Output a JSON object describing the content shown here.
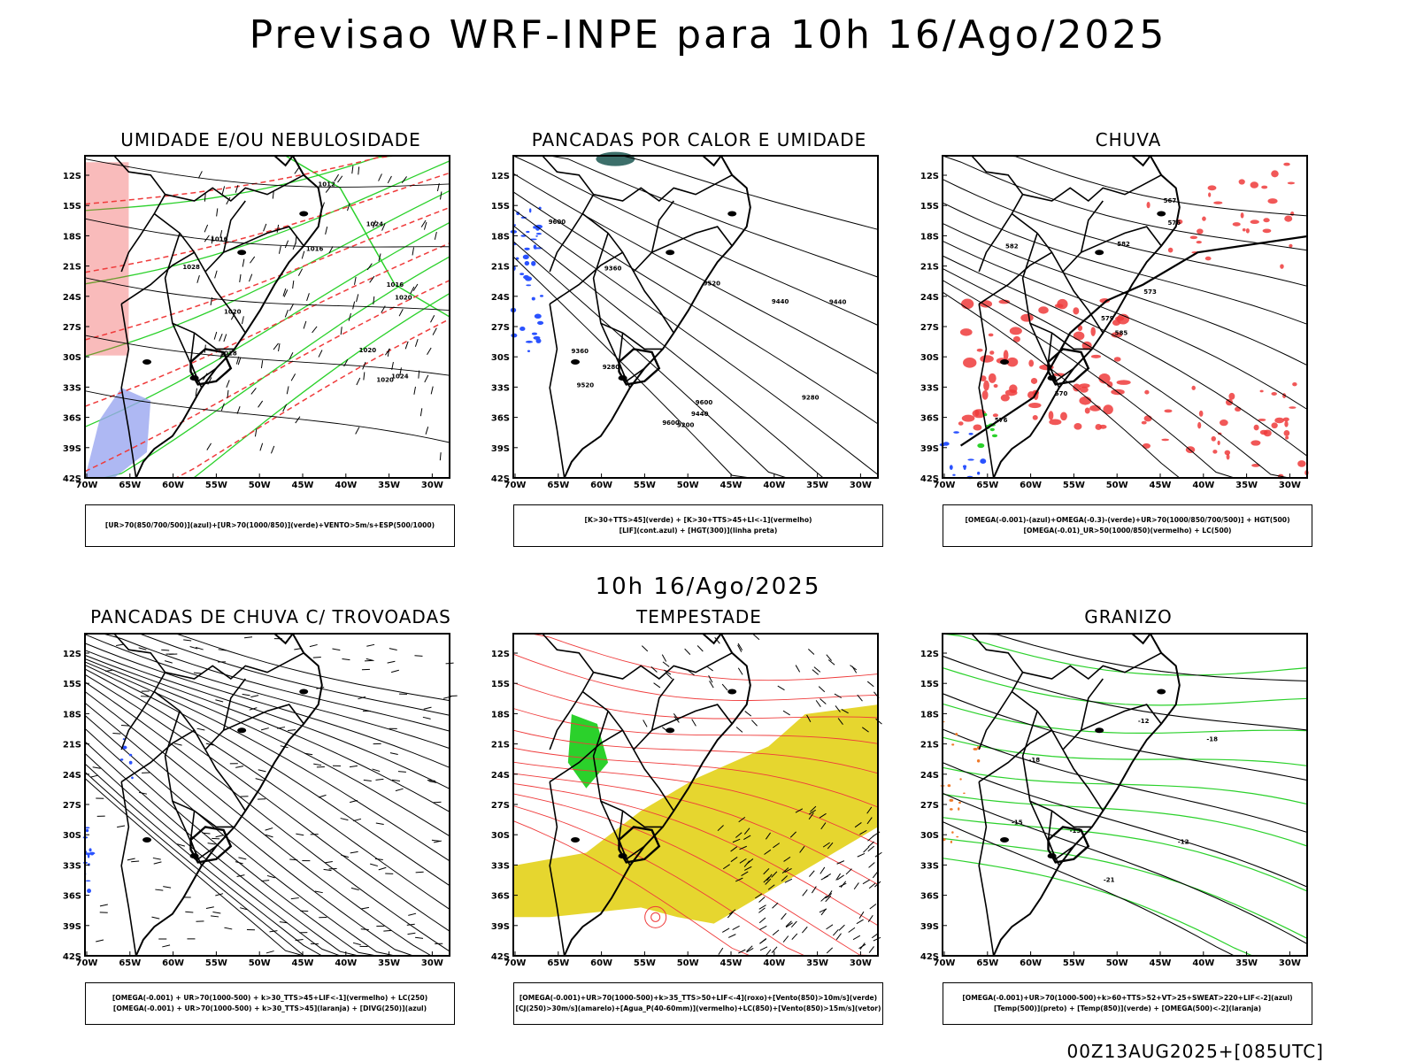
{
  "header": {
    "title": "Previsao WRF-INPE  para 10h 16/Ago/2025"
  },
  "mid_time": "10h 16/Ago/2025",
  "footer": {
    "run_stamp": "00Z13AUG2025+[085UTC]"
  },
  "axes": {
    "lat_labels": [
      "12S",
      "15S",
      "18S",
      "21S",
      "24S",
      "27S",
      "30S",
      "33S",
      "36S",
      "39S",
      "42S"
    ],
    "lon_labels": [
      "70W",
      "65W",
      "60W",
      "55W",
      "50W",
      "45W",
      "40W",
      "35W",
      "30W"
    ]
  },
  "panels": [
    {
      "id": "umidade",
      "title": "UMIDADE E/OU NEBULOSIDADE",
      "caption": [
        "[UR>70(850/700/500)](azul)+[UR>70(1000/850)](verde)+VENTO>5m/s+ESP(500/1000)"
      ],
      "contour_labels": [
        "1016",
        "1016",
        "1016",
        "1020",
        "1020",
        "1024",
        "1028",
        "1012",
        "1020",
        "1024",
        "1028",
        "1020"
      ]
    },
    {
      "id": "pancadas-calor",
      "title": "PANCADAS POR CALOR E UMIDADE",
      "caption": [
        "[K>30+TTS>45](verde) + [K>30+TTS>45+LI<-1](vermelho)",
        "[LIF](cont.azul) + [HGT(300)](linha preta)"
      ],
      "contour_labels": [
        "9600",
        "9600",
        "9520",
        "9600",
        "9440",
        "9520",
        "9440",
        "9360",
        "9440",
        "9360",
        "9280",
        "9280",
        "9200"
      ]
    },
    {
      "id": "chuva",
      "title": "CHUVA",
      "caption": [
        "[OMEGA(-0.001)-(azul)+OMEGA(-0.3)-(verde)+UR>70(1000/850/700/500)] + HGT(500)",
        "[OMEGA(-0.01)_UR>50(1000/850)(vermelho) + LC(500)"
      ],
      "contour_labels": [
        "585",
        "582",
        "579",
        "576",
        "573",
        "570",
        "567",
        "582",
        "576"
      ]
    },
    {
      "id": "pancadas-trovoadas",
      "title": "PANCADAS DE CHUVA C/ TROVOADAS",
      "caption": [
        "[OMEGA(-0.001) + UR>70(1000-500) + k>30_TTS>45+LIF<-1](vermelho) + LC(250)",
        "[OMEGA(-0.001) + UR>70(1000-500) + k>30_TTS>45](laranja) + [DIVG(250)](azul)"
      ],
      "contour_labels": []
    },
    {
      "id": "tempestade",
      "title": "TEMPESTADE",
      "caption": [
        "[OMEGA(-0.001)+UR>70(1000-500)+k>35_TTS>50+LIF<-4](roxo)+[Vento(850)>10m/s](verde)",
        "[CJ(250)>30m/s](amarelo)+[Agua_P(40-60mm)](vermelho)+LC(850)+[Vento(850)>15m/s](vetor)"
      ],
      "contour_labels": []
    },
    {
      "id": "granizo",
      "title": "GRANIZO",
      "caption": [
        "[OMEGA(-0.001)+UR>70(1000-500)+k>60+TTS>52+VT>25+SWEAT>220+LIF<-2](azul)",
        "[Temp(500)](preto) + [Temp(850)](verde) + [OMEGA(500)<-2](laranja)"
      ],
      "contour_labels": [
        "-12",
        "-12",
        "-15",
        "-15",
        "-18",
        "-21",
        "-18"
      ]
    }
  ],
  "colors": {
    "red": "#ef3b3b",
    "green": "#2bd12b",
    "blue": "#2a52ff",
    "lavender": "#9aa6f0",
    "yellow": "#e6d62f",
    "teal": "#3c6f6a"
  }
}
